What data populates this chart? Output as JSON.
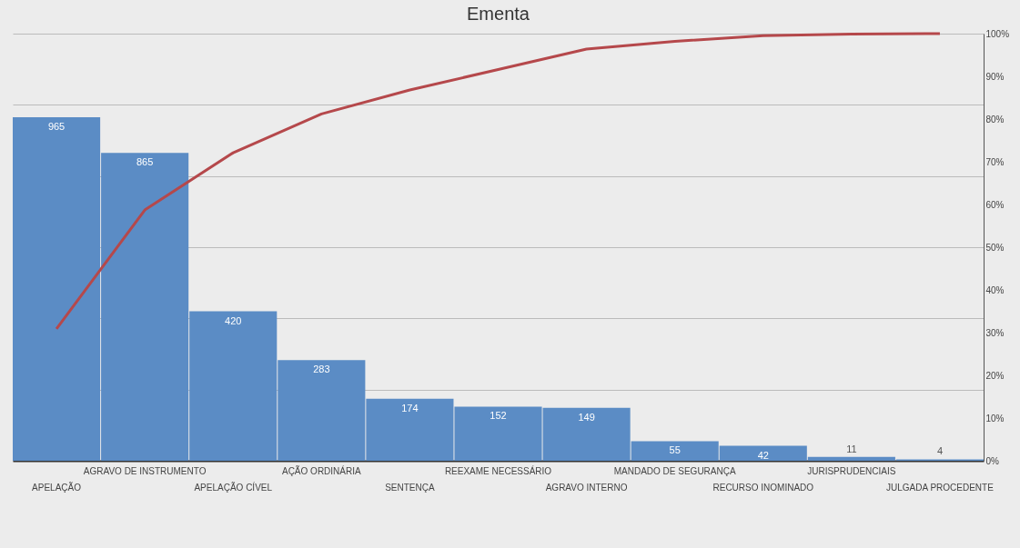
{
  "chart_data": {
    "type": "bar",
    "title": "Ementa",
    "categories": [
      "APELAÇÃO",
      "AGRAVO DE INSTRUMENTO",
      "APELAÇÃO CÍVEL",
      "AÇÃO ORDINÁRIA",
      "SENTENÇA",
      "REEXAME NECESSÁRIO",
      "AGRAVO INTERNO",
      "MANDADO DE SEGURANÇA",
      "RECURSO INOMINADO",
      "JURISPRUDENCIAIS",
      "JULGADA PROCEDENTE"
    ],
    "series": [
      {
        "color": "#5b8cc5",
        "values": [
          965,
          865,
          420,
          283,
          174,
          152,
          149,
          55,
          42,
          11,
          4
        ],
        "value_labels": [
          "965",
          "865",
          "420",
          "283",
          "174",
          "152",
          "149",
          "55",
          "42",
          "11",
          "4"
        ]
      },
      {
        "type": "line",
        "axis": "y2",
        "color": "#b5484b",
        "values": [
          30.9,
          58.7,
          72.1,
          81.2,
          86.8,
          91.6,
          96.4,
          98.2,
          99.5,
          99.9,
          100
        ]
      }
    ],
    "ylim": [
      0,
      1200
    ],
    "yticks": [
      {
        "value": 0,
        "label": null
      },
      {
        "value": 200,
        "label": null
      },
      {
        "value": 400,
        "label": null
      },
      {
        "value": 600,
        "label": null
      },
      {
        "value": 800,
        "label": null
      },
      {
        "value": 1000,
        "label": null
      },
      {
        "value": 1200,
        "label": null
      }
    ],
    "y2lim": [
      0,
      100
    ],
    "y2ticks": [
      {
        "value": 0,
        "label": "0%"
      },
      {
        "value": 10,
        "label": "10%"
      },
      {
        "value": 20,
        "label": "20%"
      },
      {
        "value": 30,
        "label": "30%"
      },
      {
        "value": 40,
        "label": "40%"
      },
      {
        "value": 50,
        "label": "50%"
      },
      {
        "value": 60,
        "label": "60%"
      },
      {
        "value": 70,
        "label": "70%"
      },
      {
        "value": 80,
        "label": "80%"
      },
      {
        "value": 90,
        "label": "90%"
      },
      {
        "value": 100,
        "label": "100%"
      }
    ],
    "grid": "y"
  }
}
